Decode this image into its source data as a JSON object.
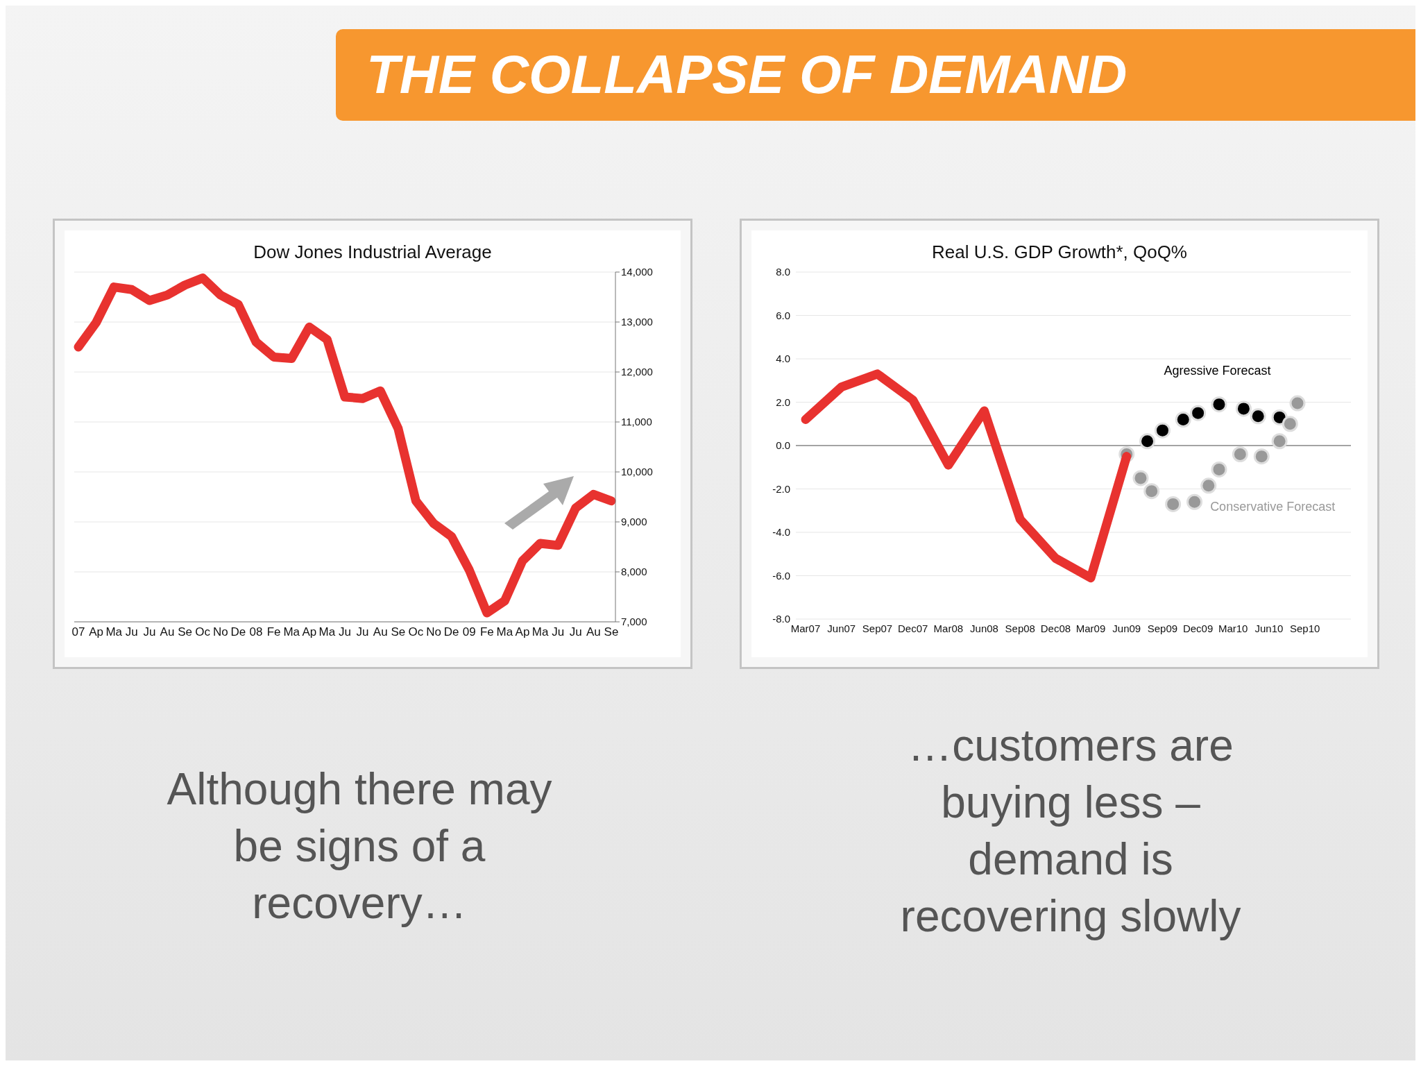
{
  "chart_data": [
    {
      "type": "line",
      "title": "Dow Jones Industrial Average",
      "categories": [
        "07",
        "Ap",
        "Ma",
        "Ju",
        "Ju",
        "Au",
        "Se",
        "Oc",
        "No",
        "De",
        "08",
        "Fe",
        "Ma",
        "Ap",
        "Ma",
        "Ju",
        "Ju",
        "Au",
        "Se",
        "Oc",
        "No",
        "De",
        "09",
        "Fe",
        "Ma",
        "Ap",
        "Ma",
        "Ju",
        "Ju",
        "Au",
        "Se"
      ],
      "series": [
        {
          "color": "#e8322f",
          "values": [
            12500,
            12990,
            13700,
            13650,
            13430,
            13540,
            13740,
            13880,
            13540,
            13350,
            12600,
            12300,
            12270,
            12900,
            12650,
            11500,
            11470,
            11620,
            10870,
            9420,
            8970,
            8710,
            8040,
            7180,
            7420,
            8220,
            8570,
            8530,
            9280,
            9550,
            9420
          ]
        }
      ],
      "ylim": [
        7000,
        14000
      ],
      "yticks": [
        {
          "value": 7000,
          "label": "7,000"
        },
        {
          "value": 8000,
          "label": "8,000"
        },
        {
          "value": 9000,
          "label": "9,000"
        },
        {
          "value": 10000,
          "label": "10,000"
        },
        {
          "value": 11000,
          "label": "11,000"
        },
        {
          "value": 12000,
          "label": "12,000"
        },
        {
          "value": 13000,
          "label": "13,000"
        },
        {
          "value": 14000,
          "label": "14,000"
        }
      ],
      "grid": "y",
      "marker": "none",
      "line_style": "solid",
      "annotations": [
        "THE COLLAPSE OF DEMAND",
        "Although there may be signs of a recovery…"
      ]
    },
    {
      "type": "line",
      "title": "Real U.S. GDP Growth*, QoQ%",
      "series": [
        {
          "color": "#e8322f",
          "marker": "none",
          "x": [
            "2007-03",
            "2007-06",
            "2007-09",
            "2007-12",
            "2008-03",
            "2008-06",
            "2008-09",
            "2008-12",
            "2009-03",
            "2009-06"
          ],
          "values": [
            1.2,
            2.7,
            3.3,
            2.1,
            -0.9,
            1.6,
            -3.4,
            -5.2,
            -6.1,
            -0.5
          ]
        },
        {
          "type": "scatter",
          "name": "Agressive Forecast",
          "color": "#000000",
          "marker": "circle",
          "x": [
            "2009-07-24",
            "2009-09",
            "2009-10-24",
            "2009-12",
            "2010-01-24",
            "2010-03-28",
            "2010-05-04",
            "2010-06-28"
          ],
          "values": [
            0.2,
            0.7,
            1.2,
            1.5,
            1.9,
            1.7,
            1.35,
            1.3
          ]
        },
        {
          "type": "scatter",
          "name": "Conservative Forecast",
          "color": "#999999",
          "marker": "circle",
          "x": [
            "2009-06",
            "2009-07-07",
            "2009-08-04",
            "2009-09-28",
            "2009-11-22",
            "2009-12-28",
            "2010-01-24",
            "2010-03-19",
            "2010-05-13",
            "2010-06-28",
            "2010-07-25",
            "2010-08-13"
          ],
          "values": [
            -0.4,
            -1.5,
            -2.1,
            -2.7,
            -2.6,
            -1.85,
            -1.1,
            -0.4,
            -0.5,
            0.2,
            1.0,
            1.95
          ]
        }
      ],
      "xlim": [
        "2007-02-04",
        "2010-12-28"
      ],
      "xticks": [
        {
          "value": "2007-03",
          "label": "Mar07"
        },
        {
          "value": "2007-06",
          "label": "Jun07"
        },
        {
          "value": "2007-09",
          "label": "Sep07"
        },
        {
          "value": "2007-12",
          "label": "Dec07"
        },
        {
          "value": "2008-03",
          "label": "Mar08"
        },
        {
          "value": "2008-06",
          "label": "Jun08"
        },
        {
          "value": "2008-09",
          "label": "Sep08"
        },
        {
          "value": "2008-12",
          "label": "Dec08"
        },
        {
          "value": "2009-03",
          "label": "Mar09"
        },
        {
          "value": "2009-06",
          "label": "Jun09"
        },
        {
          "value": "2009-09",
          "label": "Sep09"
        },
        {
          "value": "2009-12",
          "label": "Dec09"
        },
        {
          "value": "2010-03",
          "label": "Mar10"
        },
        {
          "value": "2010-06",
          "label": "Jun10"
        },
        {
          "value": "2010-09",
          "label": "Sep10"
        }
      ],
      "ylim": [
        -8,
        8
      ],
      "yticks": [
        {
          "value": -8,
          "label": "-8.0"
        },
        {
          "value": -6,
          "label": "-6.0"
        },
        {
          "value": -4,
          "label": "-4.0"
        },
        {
          "value": -2,
          "label": "-2.0"
        },
        {
          "value": 0,
          "label": "0.0"
        },
        {
          "value": 2,
          "label": "2.0"
        },
        {
          "value": 4,
          "label": "4.0"
        },
        {
          "value": 6,
          "label": "6.0"
        },
        {
          "value": 8,
          "label": "8.0"
        }
      ],
      "grid": "y",
      "ref_lines": [
        {
          "axis": "y",
          "value": 0,
          "color": "#888888"
        }
      ],
      "annotations": [
        "…customers are buying less – demand is recovering slowly"
      ]
    }
  ]
}
